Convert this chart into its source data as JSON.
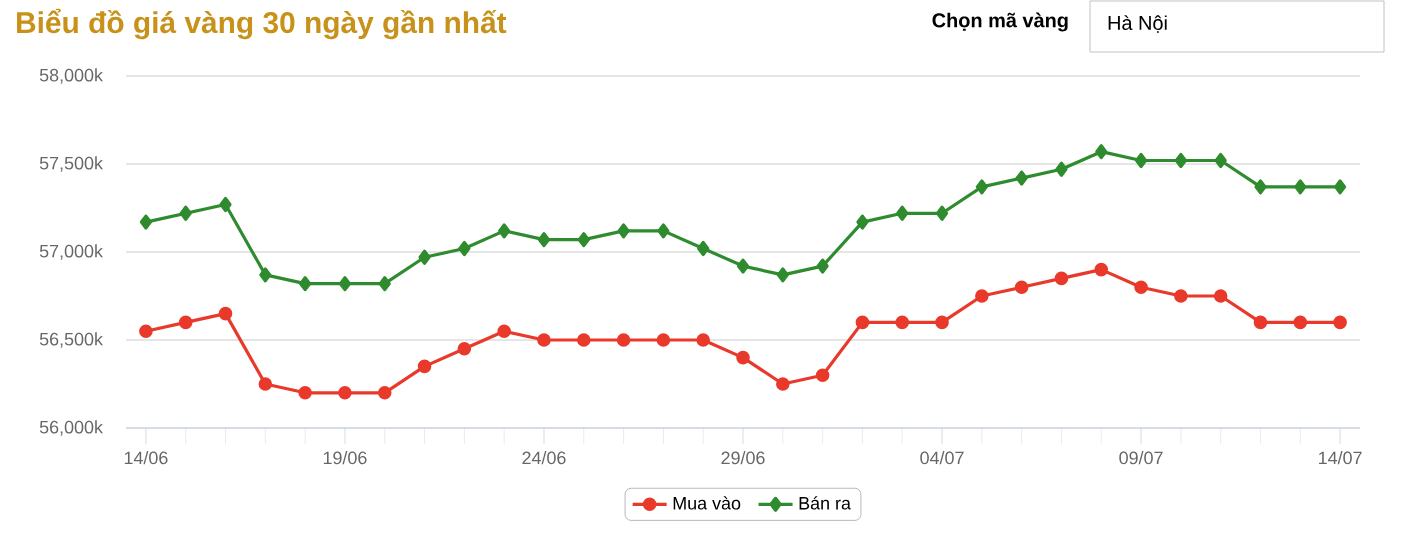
{
  "chart_data": {
    "type": "line",
    "title": "Biểu đồ giá vàng 30 ngày gần nhất",
    "annotations": [
      "Chọn mã vàng",
      "Hà Nội"
    ],
    "categories": [
      "14/06",
      null,
      null,
      null,
      null,
      "19/06",
      null,
      null,
      null,
      null,
      "24/06",
      null,
      null,
      null,
      null,
      "29/06",
      null,
      null,
      null,
      null,
      "04/07",
      null,
      null,
      null,
      null,
      "09/07",
      null,
      null,
      null,
      null,
      "14/07"
    ],
    "series": [
      {
        "name": "Mua vào",
        "color": "#e8392b",
        "marker": "circle",
        "values": [
          56550,
          56600,
          56650,
          56250,
          56200,
          56200,
          56200,
          56350,
          56450,
          56550,
          56500,
          56500,
          56500,
          56500,
          56500,
          56400,
          56250,
          56300,
          56600,
          56600,
          56600,
          56750,
          56800,
          56850,
          56900,
          56800,
          56750,
          56750,
          56600,
          56600,
          56600
        ]
      },
      {
        "name": "Bán ra",
        "color": "#2e8b2e",
        "marker": "diamond",
        "values": [
          57170,
          57220,
          57270,
          56870,
          56820,
          56820,
          56820,
          56970,
          57020,
          57120,
          57070,
          57070,
          57120,
          57120,
          57020,
          56920,
          56870,
          56920,
          57170,
          57220,
          57220,
          57370,
          57420,
          57470,
          57570,
          57520,
          57520,
          57520,
          57370,
          57370,
          57370
        ]
      }
    ],
    "ylim": [
      56000,
      58000
    ],
    "yticks": [
      {
        "value": 56000,
        "label": "56,000k"
      },
      {
        "value": 56500,
        "label": "56,500k"
      },
      {
        "value": 57000,
        "label": "57,000k"
      },
      {
        "value": 57500,
        "label": "57,500k"
      },
      {
        "value": 58000,
        "label": "58,000k"
      }
    ],
    "grid": "y",
    "legend": "bottom",
    "line_style": "solid"
  }
}
